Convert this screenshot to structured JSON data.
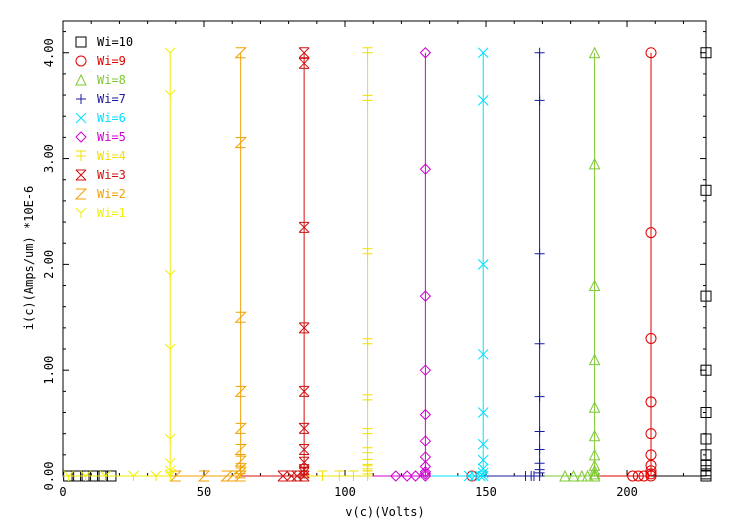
{
  "chart_data": {
    "type": "line",
    "xlabel": "v(c)(Volts)",
    "ylabel": "i(c)(Amps/um) *10E-6",
    "xlim": [
      0,
      228
    ],
    "ylim": [
      0,
      4.3
    ],
    "x_ticks": [
      0,
      50,
      100,
      150,
      200
    ],
    "x_tick_labels": [
      "0",
      "50",
      "100",
      "150",
      "200"
    ],
    "y_ticks": [
      0,
      1,
      2,
      3,
      4
    ],
    "y_tick_labels": [
      "0.00",
      "1.00",
      "2.00",
      "3.00",
      "4.00"
    ],
    "legend_position": "top-left",
    "grid": false,
    "series": [
      {
        "name": "Wi=10",
        "color": "#000000",
        "marker": "square",
        "breakdown_x": 228,
        "i_max": 4.0,
        "marker_y": [
          4.0,
          2.7,
          1.7,
          1.0,
          0.6,
          0.35,
          0.2,
          0.1,
          0.05,
          0.02,
          0.0
        ],
        "base_marker_x": [
          2,
          5,
          8,
          11,
          14,
          17
        ]
      },
      {
        "name": "Wi=9",
        "color": "#e00000",
        "marker": "circle",
        "breakdown_x": 208.5,
        "i_max": 4.0,
        "marker_y": [
          4.0,
          2.3,
          1.3,
          0.7,
          0.4,
          0.2,
          0.1,
          0.05,
          0.02,
          0.0
        ],
        "base_marker_x": [
          145,
          202,
          204,
          206
        ]
      },
      {
        "name": "Wi=8",
        "color": "#7ec832",
        "marker": "triangle",
        "breakdown_x": 188.5,
        "i_max": 4.0,
        "marker_y": [
          4.0,
          2.95,
          1.8,
          1.1,
          0.65,
          0.38,
          0.2,
          0.1,
          0.05,
          0.02,
          0.0
        ],
        "base_marker_x": [
          178,
          181,
          184,
          186
        ]
      },
      {
        "name": "Wi=7",
        "color": "#1a1aa0",
        "marker": "plus",
        "breakdown_x": 169,
        "i_max": 4.0,
        "marker_y": [
          4.0,
          3.55,
          2.1,
          1.25,
          0.75,
          0.42,
          0.25,
          0.12,
          0.06,
          0.03,
          0.0
        ],
        "base_marker_x": [
          164,
          166,
          167
        ]
      },
      {
        "name": "Wi=6",
        "color": "#00e0ff",
        "marker": "x",
        "breakdown_x": 149,
        "i_max": 4.0,
        "marker_y": [
          4.0,
          3.55,
          2.0,
          1.15,
          0.6,
          0.3,
          0.15,
          0.07,
          0.03,
          0.0
        ],
        "base_marker_x": [
          144,
          146,
          148
        ]
      },
      {
        "name": "Wi=5",
        "color": "#d000d0",
        "marker": "diamond",
        "breakdown_x": 128.5,
        "i_max": 4.0,
        "marker_y": [
          4.0,
          2.9,
          1.7,
          1.0,
          0.58,
          0.33,
          0.18,
          0.09,
          0.04,
          0.02,
          0.0
        ],
        "base_marker_x": [
          118,
          122,
          125
        ]
      },
      {
        "name": "Wi=4",
        "color": "#f0e000",
        "marker": "cross-bar",
        "breakdown_x": 108,
        "i_max": 4.0,
        "marker_y": [
          4.0,
          3.55,
          2.1,
          1.25,
          0.72,
          0.4,
          0.22,
          0.11,
          0.05,
          0.02,
          0.0
        ],
        "base_marker_x": [
          92,
          98,
          103
        ]
      },
      {
        "name": "Wi=3",
        "color": "#d01010",
        "marker": "bowtie",
        "breakdown_x": 85.5,
        "i_max": 4.0,
        "marker_y": [
          4.0,
          3.9,
          2.35,
          1.4,
          0.8,
          0.45,
          0.25,
          0.13,
          0.06,
          0.03,
          0.0
        ],
        "base_marker_x": [
          78,
          81,
          83
        ]
      },
      {
        "name": "Wi=2",
        "color": "#f0a000",
        "marker": "z",
        "breakdown_x": 63,
        "i_max": 4.0,
        "marker_y": [
          4.0,
          3.15,
          1.5,
          0.8,
          0.45,
          0.25,
          0.14,
          0.07,
          0.03,
          0.0
        ],
        "base_marker_x": [
          40,
          50,
          58,
          60
        ]
      },
      {
        "name": "Wi=1",
        "color": "#f0f000",
        "marker": "y",
        "breakdown_x": 38,
        "i_max": 4.0,
        "marker_y": [
          4.0,
          3.6,
          1.9,
          1.2,
          0.35,
          0.12,
          0.05,
          0.02,
          0.0
        ],
        "base_marker_x": [
          2,
          8,
          15,
          25,
          33
        ]
      }
    ]
  }
}
